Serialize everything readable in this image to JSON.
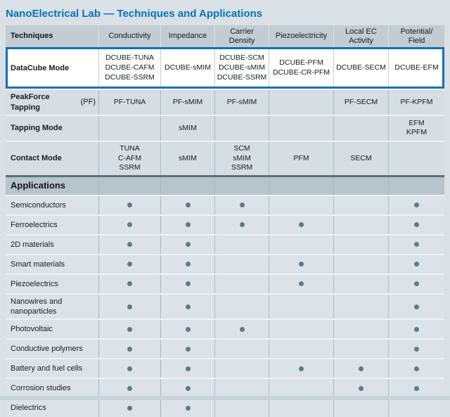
{
  "page": {
    "title": "NanoElectrical Lab — Techniques and Applications"
  },
  "colors": {
    "title_blue": "#0b72ba",
    "highlight_border_blue": "#1171b7",
    "header_row_bg": "#c3ccd2",
    "applications_header_bg": "#b7c4cb",
    "section_divider": "#5e7079",
    "technique_row_bg": "#d6dee3",
    "application_row_bg": "#dce3e8",
    "grid_line": "#a7bac4",
    "dot": "#5d7b88",
    "page_bg": "#d9e0e6"
  },
  "table": {
    "corner_label": "Techniques",
    "columns": [
      "Conductivity",
      "Impedance",
      "Carrier\nDensity",
      "Piezoelectricity",
      "Local EC\nActivity",
      "Potential/\nField"
    ],
    "technique_rows": [
      {
        "label": "DataCube Mode",
        "label_suffix": "",
        "highlighted": true,
        "cells": [
          [
            "DCUBE-TUNA",
            "DCUBE-CAFM",
            "DCUBE-SSRM"
          ],
          [
            "DCUBE-sMIM"
          ],
          [
            "DCUBE-SCM",
            "DCUBE-sMIM",
            "DCUBE-SSRM"
          ],
          [
            "DCUBE-PFM",
            "DCUBE-CR-PFM"
          ],
          [
            "DCUBE-SECM"
          ],
          [
            "DCUBE-EFM"
          ]
        ]
      },
      {
        "label": "PeakForce Tapping",
        "label_suffix": "(PF)",
        "highlighted": false,
        "cells": [
          [
            "PF-TUNA"
          ],
          [
            "PF-sMIM"
          ],
          [
            "PF-sMIM"
          ],
          [],
          [
            "PF-SECM"
          ],
          [
            "PF-KPFM"
          ]
        ]
      },
      {
        "label": "Tapping Mode",
        "label_suffix": "",
        "highlighted": false,
        "cells": [
          [],
          [
            "sMIM"
          ],
          [],
          [],
          [],
          [
            "EFM",
            "KPFM"
          ]
        ]
      },
      {
        "label": "Contact Mode",
        "label_suffix": "",
        "highlighted": false,
        "cells": [
          [
            "TUNA",
            "C-AFM",
            "SSRM"
          ],
          [
            "sMIM"
          ],
          [
            "SCM",
            "sMIM",
            "SSRM"
          ],
          [
            "PFM"
          ],
          [
            "SECM"
          ],
          []
        ]
      }
    ],
    "applications_label": "Applications",
    "application_rows": [
      {
        "label": "Semiconductors",
        "marks": [
          1,
          1,
          1,
          0,
          0,
          1
        ]
      },
      {
        "label": "Ferroelectrics",
        "marks": [
          1,
          1,
          1,
          1,
          0,
          1
        ]
      },
      {
        "label": "2D materials",
        "marks": [
          1,
          1,
          0,
          0,
          0,
          1
        ]
      },
      {
        "label": "Smart materials",
        "marks": [
          1,
          1,
          0,
          1,
          0,
          1
        ]
      },
      {
        "label": "Piezoelectrics",
        "marks": [
          1,
          1,
          0,
          1,
          0,
          1
        ]
      },
      {
        "label": "Nanowires and nanoparticles",
        "marks": [
          1,
          1,
          0,
          0,
          0,
          1
        ]
      },
      {
        "label": "Photovoltaic",
        "marks": [
          1,
          1,
          1,
          0,
          0,
          1
        ]
      },
      {
        "label": "Conductive polymers",
        "marks": [
          1,
          1,
          0,
          0,
          0,
          1
        ]
      },
      {
        "label": "Battery and fuel cells",
        "marks": [
          1,
          1,
          0,
          1,
          1,
          1
        ]
      },
      {
        "label": "Corrosion studies",
        "marks": [
          1,
          1,
          0,
          0,
          1,
          1
        ]
      },
      {
        "label": "Dielectrics",
        "marks": [
          1,
          1,
          0,
          0,
          0,
          0
        ]
      }
    ]
  }
}
